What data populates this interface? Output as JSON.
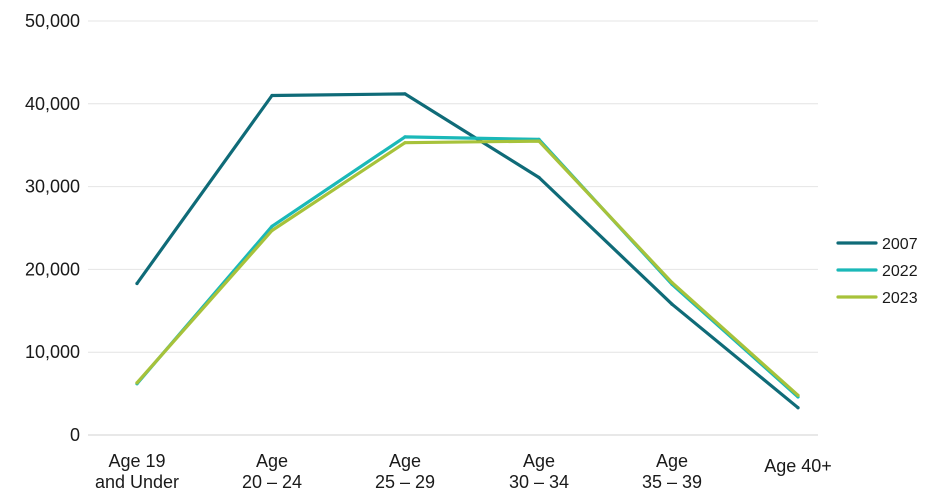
{
  "chart_data": {
    "type": "line",
    "title": "",
    "xlabel": "",
    "ylabel": "",
    "categories": [
      [
        "Age 19",
        "and Under"
      ],
      [
        "Age",
        "20 – 24"
      ],
      [
        "Age",
        "25 – 29"
      ],
      [
        "Age",
        "30 – 34"
      ],
      [
        "Age",
        "35 – 39"
      ],
      [
        "Age 40+"
      ]
    ],
    "ylim": [
      0,
      50000
    ],
    "yticks": [
      0,
      10000,
      20000,
      30000,
      40000,
      50000
    ],
    "ytick_labels": [
      "0",
      "10,000",
      "20,000",
      "30,000",
      "40,000",
      "50,000"
    ],
    "grid": true,
    "legend_position": "right",
    "series": [
      {
        "name": "2007",
        "color": "#0f6b78",
        "values": [
          18300,
          41000,
          41200,
          31100,
          15800,
          3300
        ]
      },
      {
        "name": "2022",
        "color": "#1ab8b8",
        "values": [
          6200,
          25200,
          36000,
          35700,
          18200,
          4600
        ]
      },
      {
        "name": "2023",
        "color": "#a7c23a",
        "values": [
          6300,
          24700,
          35300,
          35500,
          18400,
          4800
        ]
      }
    ]
  }
}
